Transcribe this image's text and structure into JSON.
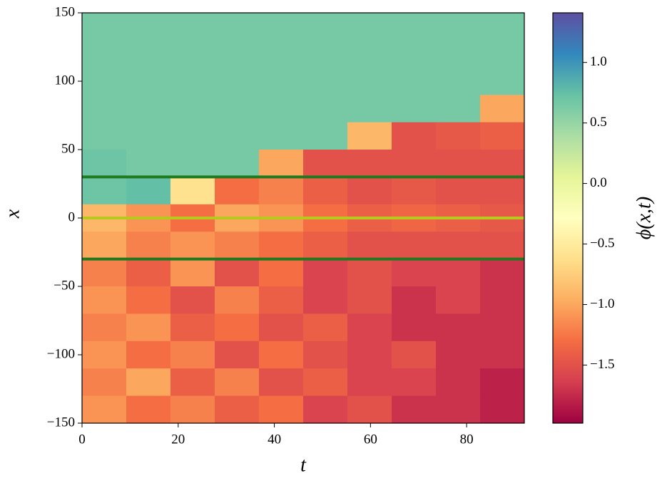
{
  "chart_data": {
    "type": "heatmap",
    "xlabel": "t",
    "ylabel": "x",
    "colorbar_label": "ϕ(x,t)",
    "colormap": "Spectral",
    "x": [
      4.6,
      13.8,
      23,
      32.2,
      41.4,
      50.6,
      59.8,
      69,
      78.2,
      87.4
    ],
    "y": [
      140,
      120,
      100,
      80,
      60,
      40,
      20,
      0,
      -20,
      -40,
      -60,
      -80,
      -100,
      -120,
      -140
    ],
    "z": [
      [
        0.65,
        0.65,
        0.65,
        0.65,
        0.65,
        0.65,
        0.65,
        0.65,
        0.65,
        0.65
      ],
      [
        0.65,
        0.65,
        0.65,
        0.65,
        0.65,
        0.65,
        0.65,
        0.65,
        0.65,
        0.65
      ],
      [
        0.65,
        0.65,
        0.65,
        0.65,
        0.65,
        0.65,
        0.65,
        0.65,
        0.65,
        0.65
      ],
      [
        0.65,
        0.65,
        0.65,
        0.65,
        0.65,
        0.65,
        0.65,
        0.65,
        0.65,
        -1.0
      ],
      [
        0.65,
        0.65,
        0.65,
        0.65,
        0.65,
        0.65,
        -0.9,
        -1.5,
        -1.45,
        -1.4
      ],
      [
        0.7,
        0.65,
        0.65,
        0.65,
        -1.0,
        -1.5,
        -1.5,
        -1.5,
        -1.5,
        -1.5
      ],
      [
        0.7,
        0.75,
        -0.6,
        -1.3,
        -1.2,
        -1.4,
        -1.5,
        -1.45,
        -1.5,
        -1.5
      ],
      [
        -0.9,
        -1.1,
        -1.3,
        -1.0,
        -1.1,
        -1.3,
        -1.4,
        -1.35,
        -1.4,
        -1.45
      ],
      [
        -1.0,
        -1.2,
        -1.1,
        -1.2,
        -1.3,
        -1.4,
        -1.5,
        -1.5,
        -1.5,
        -1.5
      ],
      [
        -1.2,
        -1.4,
        -1.1,
        -1.5,
        -1.3,
        -1.6,
        -1.5,
        -1.6,
        -1.6,
        -1.7
      ],
      [
        -1.1,
        -1.3,
        -1.5,
        -1.2,
        -1.4,
        -1.6,
        -1.5,
        -1.7,
        -1.6,
        -1.7
      ],
      [
        -1.2,
        -1.1,
        -1.4,
        -1.3,
        -1.5,
        -1.4,
        -1.6,
        -1.7,
        -1.7,
        -1.7
      ],
      [
        -1.1,
        -1.3,
        -1.2,
        -1.5,
        -1.3,
        -1.5,
        -1.6,
        -1.5,
        -1.7,
        -1.7
      ],
      [
        -1.2,
        -1.0,
        -1.4,
        -1.2,
        -1.5,
        -1.4,
        -1.6,
        -1.6,
        -1.7,
        -1.8
      ],
      [
        -1.1,
        -1.3,
        -1.2,
        -1.4,
        -1.3,
        -1.6,
        -1.5,
        -1.7,
        -1.7,
        -1.8
      ]
    ],
    "xlim": [
      0,
      92
    ],
    "ylim": [
      -150,
      150
    ],
    "zlim": [
      -1.98,
      1.41
    ],
    "xticks": [
      0,
      20,
      40,
      60,
      80
    ],
    "yticks": [
      {
        "value": -150,
        "label": "−150"
      },
      {
        "value": -100,
        "label": "−100"
      },
      {
        "value": -50,
        "label": "−50"
      },
      0,
      50,
      100,
      150
    ],
    "zticks": [
      {
        "value": -1.5,
        "label": "−1.5"
      },
      {
        "value": -1.0,
        "label": "−1.0"
      },
      {
        "value": -0.5,
        "label": "−0.5"
      },
      {
        "value": 0,
        "label": "0.0"
      },
      0.5,
      {
        "value": 1.0,
        "label": "1.0"
      }
    ],
    "hlines": [
      {
        "value": 30,
        "color": "#1f7a1f"
      },
      {
        "value": 0,
        "color": "#b7c91c"
      },
      {
        "value": -30,
        "color": "#1f7a1f"
      }
    ]
  }
}
